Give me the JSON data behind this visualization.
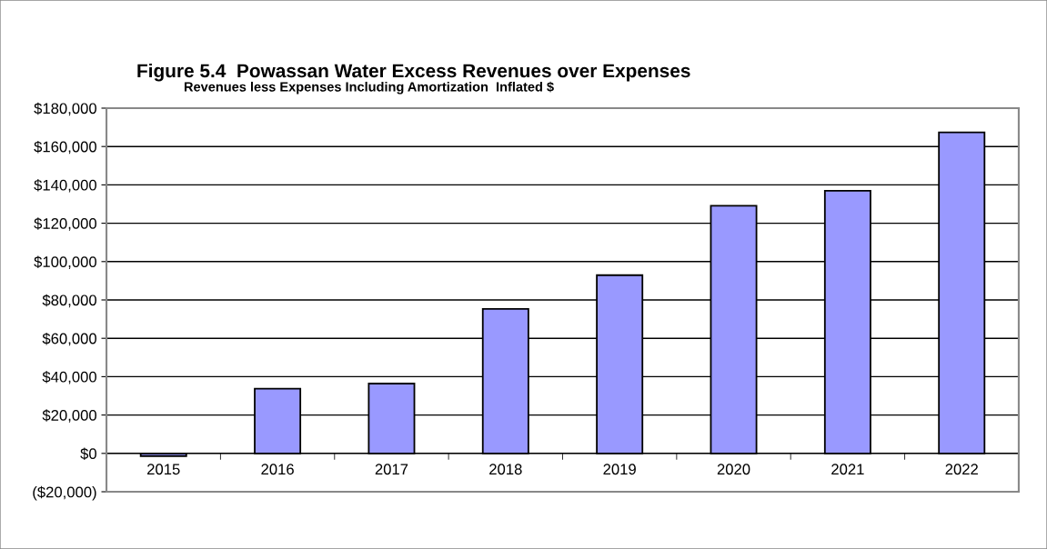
{
  "chart_data": {
    "type": "bar",
    "title": "Figure 5.4  Powassan Water Excess Revenues over Expenses",
    "subtitle": "Revenues less Expenses Including Amortization  Inflated $",
    "categories": [
      "2015",
      "2016",
      "2017",
      "2018",
      "2019",
      "2020",
      "2021",
      "2022"
    ],
    "values": [
      -1400,
      33700,
      36400,
      75300,
      92900,
      129100,
      136900,
      167400
    ],
    "color": "#9999ff",
    "ylim": [
      -20000,
      180000
    ],
    "yticks": [
      {
        "value": -20000,
        "label": "($20,000)"
      },
      {
        "value": 0,
        "label": "$0"
      },
      {
        "value": 20000,
        "label": "$20,000"
      },
      {
        "value": 40000,
        "label": "$40,000"
      },
      {
        "value": 60000,
        "label": "$60,000"
      },
      {
        "value": 80000,
        "label": "$80,000"
      },
      {
        "value": 100000,
        "label": "$100,000"
      },
      {
        "value": 120000,
        "label": "$120,000"
      },
      {
        "value": 140000,
        "label": "$140,000"
      },
      {
        "value": 160000,
        "label": "$160,000"
      },
      {
        "value": 180000,
        "label": "$180,000"
      }
    ],
    "grid": "y",
    "legend": false
  }
}
